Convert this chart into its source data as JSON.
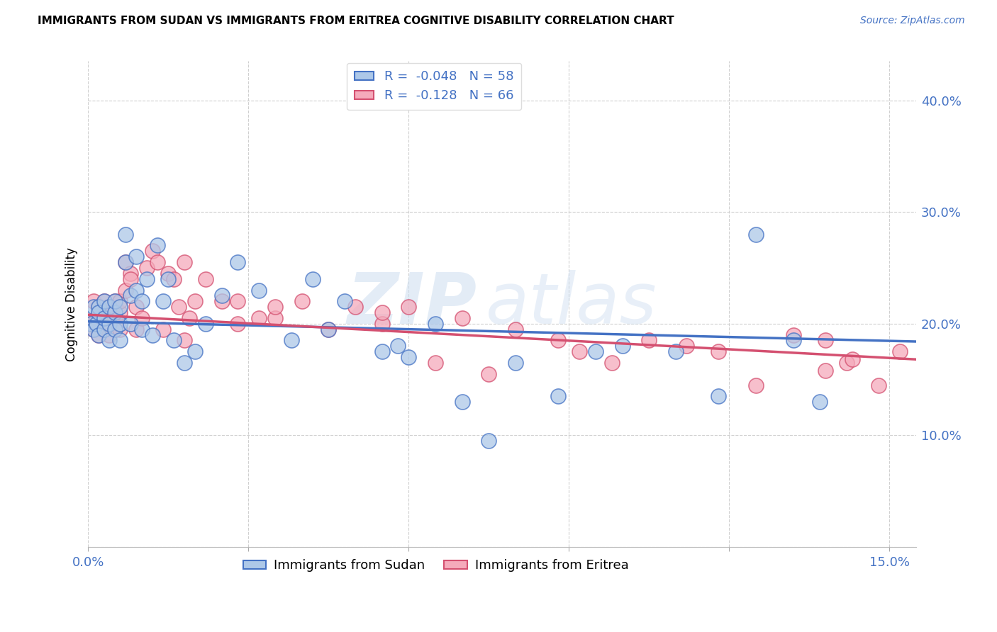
{
  "title": "IMMIGRANTS FROM SUDAN VS IMMIGRANTS FROM ERITREA COGNITIVE DISABILITY CORRELATION CHART",
  "source": "Source: ZipAtlas.com",
  "ylabel": "Cognitive Disability",
  "xlim": [
    0.0,
    0.155
  ],
  "ylim": [
    0.0,
    0.435
  ],
  "sudan_face_color": "#adc8e8",
  "eritrea_face_color": "#f5aabb",
  "sudan_edge_color": "#4472c4",
  "eritrea_edge_color": "#d45070",
  "sudan_R": "-0.048",
  "sudan_N": "58",
  "eritrea_R": "-0.128",
  "eritrea_N": "66",
  "watermark_zip": "ZIP",
  "watermark_atlas": "atlas",
  "legend_label_sudan": "Immigrants from Sudan",
  "legend_label_eritrea": "Immigrants from Eritrea",
  "sudan_trend_x0": 0.0,
  "sudan_trend_x1": 0.155,
  "sudan_trend_y0": 0.202,
  "sudan_trend_y1": 0.184,
  "eritrea_trend_x0": 0.0,
  "eritrea_trend_x1": 0.155,
  "eritrea_trend_y0": 0.208,
  "eritrea_trend_y1": 0.168,
  "sudan_x": [
    0.0005,
    0.001,
    0.001,
    0.0015,
    0.002,
    0.002,
    0.002,
    0.003,
    0.003,
    0.003,
    0.004,
    0.004,
    0.004,
    0.005,
    0.005,
    0.005,
    0.006,
    0.006,
    0.006,
    0.007,
    0.007,
    0.008,
    0.008,
    0.009,
    0.009,
    0.01,
    0.01,
    0.011,
    0.012,
    0.013,
    0.014,
    0.015,
    0.016,
    0.018,
    0.02,
    0.022,
    0.025,
    0.028,
    0.032,
    0.038,
    0.042,
    0.048,
    0.055,
    0.06,
    0.065,
    0.07,
    0.075,
    0.08,
    0.088,
    0.095,
    0.1,
    0.11,
    0.118,
    0.125,
    0.132,
    0.137,
    0.045,
    0.058
  ],
  "sudan_y": [
    0.2,
    0.195,
    0.215,
    0.2,
    0.19,
    0.215,
    0.21,
    0.195,
    0.205,
    0.22,
    0.185,
    0.2,
    0.215,
    0.195,
    0.21,
    0.22,
    0.185,
    0.2,
    0.215,
    0.28,
    0.255,
    0.2,
    0.225,
    0.23,
    0.26,
    0.22,
    0.195,
    0.24,
    0.19,
    0.27,
    0.22,
    0.24,
    0.185,
    0.165,
    0.175,
    0.2,
    0.225,
    0.255,
    0.23,
    0.185,
    0.24,
    0.22,
    0.175,
    0.17,
    0.2,
    0.13,
    0.095,
    0.165,
    0.135,
    0.175,
    0.18,
    0.175,
    0.135,
    0.28,
    0.185,
    0.13,
    0.195,
    0.18
  ],
  "eritrea_x": [
    0.0005,
    0.001,
    0.001,
    0.0015,
    0.002,
    0.002,
    0.003,
    0.003,
    0.003,
    0.004,
    0.004,
    0.004,
    0.005,
    0.005,
    0.006,
    0.006,
    0.006,
    0.007,
    0.007,
    0.008,
    0.008,
    0.009,
    0.009,
    0.01,
    0.011,
    0.012,
    0.013,
    0.014,
    0.015,
    0.016,
    0.017,
    0.018,
    0.019,
    0.02,
    0.022,
    0.025,
    0.028,
    0.032,
    0.035,
    0.04,
    0.045,
    0.05,
    0.055,
    0.06,
    0.065,
    0.07,
    0.075,
    0.08,
    0.088,
    0.092,
    0.098,
    0.105,
    0.112,
    0.118,
    0.125,
    0.132,
    0.138,
    0.142,
    0.148,
    0.152,
    0.035,
    0.018,
    0.028,
    0.055,
    0.138,
    0.143
  ],
  "eritrea_y": [
    0.2,
    0.22,
    0.195,
    0.205,
    0.19,
    0.215,
    0.205,
    0.22,
    0.195,
    0.21,
    0.19,
    0.215,
    0.205,
    0.22,
    0.195,
    0.21,
    0.22,
    0.23,
    0.255,
    0.245,
    0.24,
    0.215,
    0.195,
    0.205,
    0.25,
    0.265,
    0.255,
    0.195,
    0.245,
    0.24,
    0.215,
    0.185,
    0.205,
    0.22,
    0.24,
    0.22,
    0.22,
    0.205,
    0.205,
    0.22,
    0.195,
    0.215,
    0.2,
    0.215,
    0.165,
    0.205,
    0.155,
    0.195,
    0.185,
    0.175,
    0.165,
    0.185,
    0.18,
    0.175,
    0.145,
    0.19,
    0.185,
    0.165,
    0.145,
    0.175,
    0.215,
    0.255,
    0.2,
    0.21,
    0.158,
    0.168
  ]
}
